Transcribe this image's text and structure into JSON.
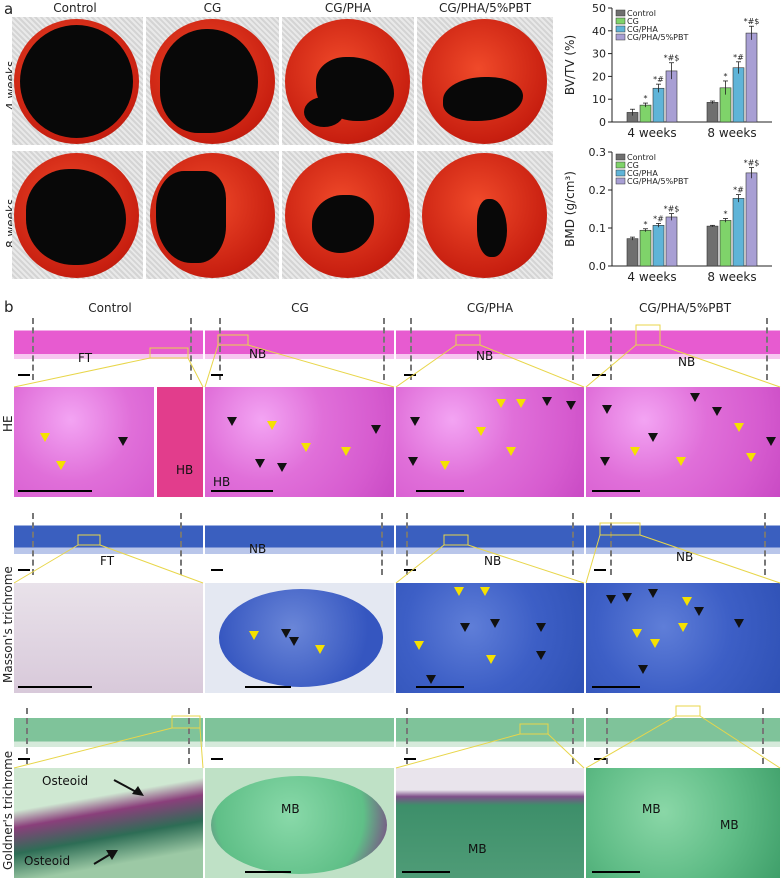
{
  "panel_a": {
    "letter": "a",
    "columns": [
      "Control",
      "CG",
      "CG/PHA",
      "CG/PHA/5%PBT"
    ],
    "rows": [
      "4 weeks",
      "8 weeks"
    ]
  },
  "panel_b": {
    "letter": "b",
    "columns": [
      "Control",
      "CG",
      "CG/PHA",
      "CG/PHA/5%PBT"
    ],
    "stain_labels": [
      "HE",
      "Masson's trichrome",
      "Goldner's trichrome"
    ],
    "he_overview_labels": [
      "FT",
      "NB",
      "NB",
      "NB"
    ],
    "he_zoom_labels": {
      "control": "HB",
      "cg": "HB"
    },
    "mt_overview_labels": [
      "FT",
      "NB",
      "NB",
      "NB"
    ],
    "goldner_zoom_labels": {
      "osteoid_1": "Osteoid",
      "osteoid_2": "Osteoid",
      "cg_mb": "MB",
      "cgpha_mb": "MB",
      "pbt_mb_1": "MB",
      "pbt_mb_2": "MB"
    }
  },
  "chart_data": [
    {
      "type": "bar",
      "ylabel": "BV/TV (%)",
      "ylim": [
        0,
        50
      ],
      "yticks": [
        0,
        10,
        20,
        30,
        40,
        50
      ],
      "categories": [
        "4 weeks",
        "8 weeks"
      ],
      "legend": "top-left",
      "series": [
        {
          "name": "Control",
          "color": "#6f6f6f",
          "values": [
            4.2,
            8.6
          ],
          "errors": [
            1.4,
            0.6
          ],
          "marks": [
            "",
            ""
          ]
        },
        {
          "name": "CG",
          "color": "#7fd36a",
          "values": [
            7.4,
            15.0
          ],
          "errors": [
            0.9,
            3.0
          ],
          "marks": [
            "*",
            "*"
          ]
        },
        {
          "name": "CG/PHA",
          "color": "#5fb4d8",
          "values": [
            14.8,
            23.8
          ],
          "errors": [
            1.8,
            2.6
          ],
          "marks": [
            "*#",
            "*#"
          ]
        },
        {
          "name": "CG/PHA/5%PBT",
          "color": "#a89fd4",
          "values": [
            22.4,
            39.0
          ],
          "errors": [
            3.6,
            3.0
          ],
          "marks": [
            "*#$",
            "*#$"
          ]
        }
      ]
    },
    {
      "type": "bar",
      "ylabel": "BMD (g/cm³)",
      "ylim": [
        0,
        0.3
      ],
      "yticks": [
        0.0,
        0.1,
        0.2,
        0.3
      ],
      "categories": [
        "4 weeks",
        "8 weeks"
      ],
      "legend": "top-left",
      "series": [
        {
          "name": "Control",
          "color": "#6f6f6f",
          "values": [
            0.072,
            0.105
          ],
          "errors": [
            0.004,
            0.002
          ],
          "marks": [
            "",
            ""
          ]
        },
        {
          "name": "CG",
          "color": "#7fd36a",
          "values": [
            0.094,
            0.12
          ],
          "errors": [
            0.004,
            0.005
          ],
          "marks": [
            "*",
            "*"
          ]
        },
        {
          "name": "CG/PHA",
          "color": "#5fb4d8",
          "values": [
            0.107,
            0.178
          ],
          "errors": [
            0.005,
            0.01
          ],
          "marks": [
            "*#",
            "*#"
          ]
        },
        {
          "name": "CG/PHA/5%PBT",
          "color": "#a89fd4",
          "values": [
            0.129,
            0.245
          ],
          "errors": [
            0.009,
            0.014
          ],
          "marks": [
            "*#$",
            "*#$"
          ]
        }
      ]
    }
  ]
}
